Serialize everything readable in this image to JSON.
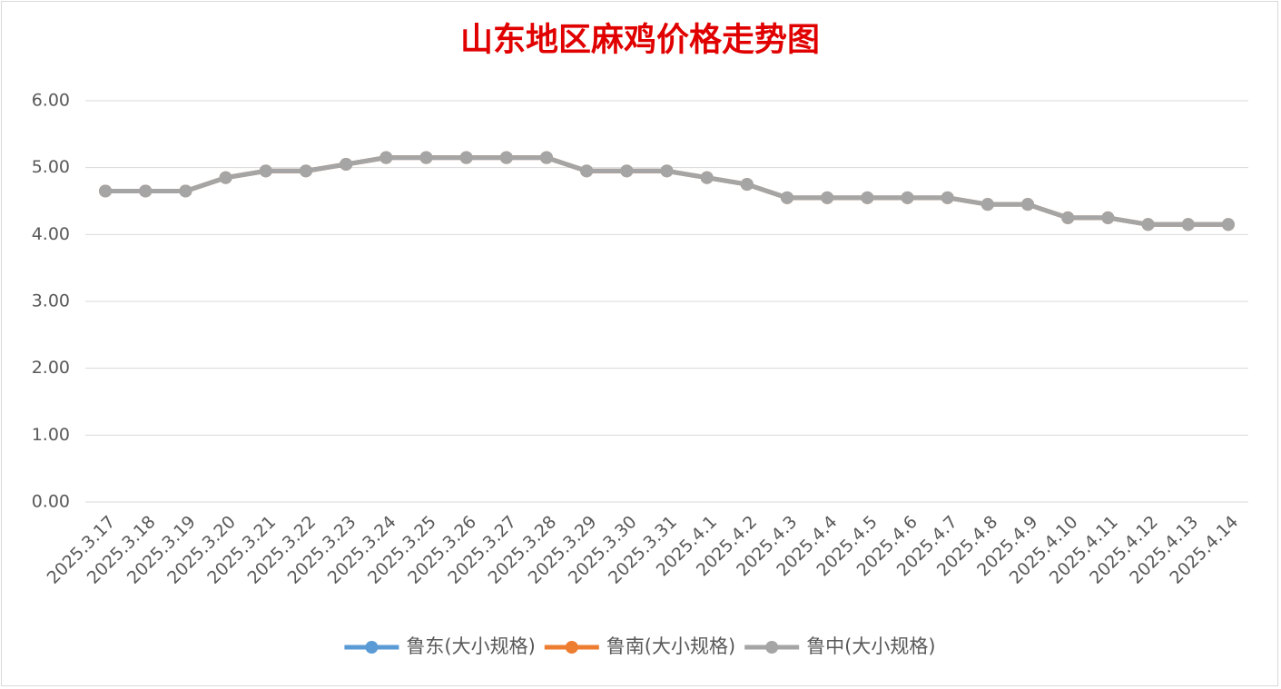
{
  "chart_data": {
    "type": "line",
    "title": "山东地区麻鸡价格走势图",
    "categories": [
      "2025.3.17",
      "2025.3.18",
      "2025.3.19",
      "2025.3.20",
      "2025.3.21",
      "2025.3.22",
      "2025.3.23",
      "2025.3.24",
      "2025.3.25",
      "2025.3.26",
      "2025.3.27",
      "2025.3.28",
      "2025.3.29",
      "2025.3.30",
      "2025.3.31",
      "2025.4.1",
      "2025.4.2",
      "2025.4.3",
      "2025.4.4",
      "2025.4.5",
      "2025.4.6",
      "2025.4.7",
      "2025.4.8",
      "2025.4.9",
      "2025.4.10",
      "2025.4.11",
      "2025.4.12",
      "2025.4.13",
      "2025.4.14"
    ],
    "series": [
      {
        "name": "鲁东(大小规格)",
        "color": "#5b9bd5",
        "values": [
          4.65,
          4.65,
          4.65,
          4.85,
          4.95,
          4.95,
          5.05,
          5.15,
          5.15,
          5.15,
          5.15,
          5.15,
          4.95,
          4.95,
          4.95,
          4.85,
          4.75,
          4.55,
          4.55,
          4.55,
          4.55,
          4.55,
          4.45,
          4.45,
          4.25,
          4.25,
          4.15,
          4.15,
          4.15
        ]
      },
      {
        "name": "鲁南(大小规格)",
        "color": "#ed7d31",
        "values": [
          4.65,
          4.65,
          4.65,
          4.85,
          4.95,
          4.95,
          5.05,
          5.15,
          5.15,
          5.15,
          5.15,
          5.15,
          4.95,
          4.95,
          4.95,
          4.85,
          4.75,
          4.55,
          4.55,
          4.55,
          4.55,
          4.55,
          4.45,
          4.45,
          4.25,
          4.25,
          4.15,
          4.15,
          4.15
        ]
      },
      {
        "name": "鲁中(大小规格)",
        "color": "#a5a5a5",
        "values": [
          4.65,
          4.65,
          4.65,
          4.85,
          4.95,
          4.95,
          5.05,
          5.15,
          5.15,
          5.15,
          5.15,
          5.15,
          4.95,
          4.95,
          4.95,
          4.85,
          4.75,
          4.55,
          4.55,
          4.55,
          4.55,
          4.55,
          4.45,
          4.45,
          4.25,
          4.25,
          4.15,
          4.15,
          4.15
        ]
      }
    ],
    "ylim": [
      0,
      6
    ],
    "yticks": [
      {
        "value": 0,
        "label": "0.00"
      },
      {
        "value": 1,
        "label": "1.00"
      },
      {
        "value": 2,
        "label": "2.00"
      },
      {
        "value": 3,
        "label": "3.00"
      },
      {
        "value": 4,
        "label": "4.00"
      },
      {
        "value": 5,
        "label": "5.00"
      },
      {
        "value": 6,
        "label": "6.00"
      }
    ],
    "grid": true,
    "legend": "bottom"
  }
}
